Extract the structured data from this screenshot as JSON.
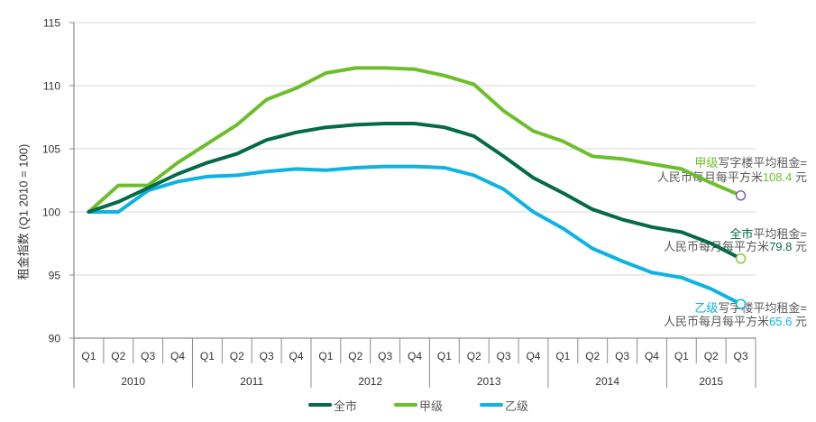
{
  "y_axis_title": "租金指数 (Q1 2010 = 100)",
  "legend": {
    "items": [
      {
        "label": "全市",
        "color": "#046A48"
      },
      {
        "label": "甲级",
        "color": "#6CBF2A"
      },
      {
        "label": "乙级",
        "color": "#0DB3E2"
      }
    ]
  },
  "chart_data": {
    "type": "line",
    "title": "",
    "xlabel": "",
    "ylabel": "租金指数 (Q1 2010 = 100)",
    "ylim": [
      90,
      115
    ],
    "yticks": [
      90,
      95,
      100,
      105,
      110,
      115
    ],
    "grid": true,
    "legend_position": "bottom",
    "x": [
      "2010 Q1",
      "2010 Q2",
      "2010 Q3",
      "2010 Q4",
      "2011 Q1",
      "2011 Q2",
      "2011 Q3",
      "2011 Q4",
      "2012 Q1",
      "2012 Q2",
      "2012 Q3",
      "2012 Q4",
      "2013 Q1",
      "2013 Q2",
      "2013 Q3",
      "2013 Q4",
      "2014 Q1",
      "2014 Q2",
      "2014 Q3",
      "2014 Q4",
      "2015 Q1",
      "2015 Q2",
      "2015 Q3"
    ],
    "quarter_labels": [
      "Q1",
      "Q2",
      "Q3",
      "Q4",
      "Q1",
      "Q2",
      "Q3",
      "Q4",
      "Q1",
      "Q2",
      "Q3",
      "Q4",
      "Q1",
      "Q2",
      "Q3",
      "Q4",
      "Q1",
      "Q2",
      "Q3",
      "Q4",
      "Q1",
      "Q2",
      "Q3"
    ],
    "year_labels": [
      {
        "label": "2010",
        "quarters": 4
      },
      {
        "label": "2011",
        "quarters": 4
      },
      {
        "label": "2012",
        "quarters": 4
      },
      {
        "label": "2013",
        "quarters": 4
      },
      {
        "label": "2014",
        "quarters": 4
      },
      {
        "label": "2015",
        "quarters": 3
      }
    ],
    "series": [
      {
        "name": "全市",
        "color": "#046A48",
        "marker_color": "#8DC63F",
        "values": [
          100,
          100.8,
          101.9,
          103.0,
          103.9,
          104.6,
          105.7,
          106.3,
          106.7,
          106.9,
          107.0,
          107.0,
          106.7,
          106.0,
          104.4,
          102.7,
          101.5,
          100.2,
          99.4,
          98.8,
          98.4,
          97.5,
          96.3
        ]
      },
      {
        "name": "甲级",
        "color": "#6CBF2A",
        "marker_color": "#7B61B3",
        "values": [
          100,
          102.1,
          102.1,
          103.9,
          105.4,
          106.9,
          108.9,
          109.8,
          111.0,
          111.4,
          111.4,
          111.3,
          110.8,
          110.1,
          108.0,
          106.4,
          105.6,
          104.4,
          104.2,
          103.8,
          103.4,
          102.3,
          101.3
        ]
      },
      {
        "name": "乙级",
        "color": "#0DB3E2",
        "marker_color": "#0DB3E2",
        "values": [
          100,
          100.0,
          101.7,
          102.4,
          102.8,
          102.9,
          103.2,
          103.4,
          103.3,
          103.5,
          103.6,
          103.6,
          103.5,
          102.9,
          101.8,
          100.0,
          98.7,
          97.1,
          96.1,
          95.2,
          94.8,
          93.9,
          92.7
        ]
      }
    ],
    "annotations": [
      {
        "series": "甲级",
        "highlight": "甲级",
        "line1": "写字楼平均租金=",
        "line2": "人民币每月每平方米",
        "value": "108.4",
        "unit": " 元"
      },
      {
        "series": "全市",
        "highlight": "全市",
        "line1": "平均租金=",
        "line2": "人民币每月每平方米",
        "value": "79.8",
        "unit": " 元"
      },
      {
        "series": "乙级",
        "highlight": "乙级",
        "line1": "写字楼平均租金=",
        "line2": "人民币每月每平方米",
        "value": "65.6",
        "unit": " 元"
      }
    ]
  }
}
